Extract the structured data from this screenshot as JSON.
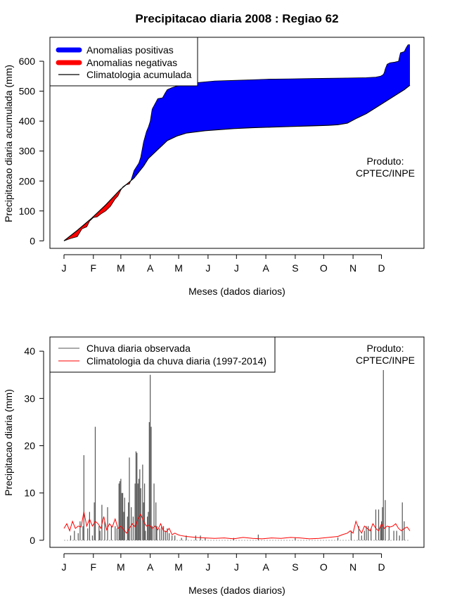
{
  "page": {
    "title": "Precipitacao diaria 2008 : Regiao 62",
    "product_line1": "Produto:",
    "product_line2": "CPTEC/INPE"
  },
  "chart_data": [
    {
      "type": "area",
      "name": "cumulative",
      "xlabel": "Meses (dados diarios)",
      "ylabel": "Precipitacao diaria acumulada (mm)",
      "x_range": [
        1,
        366
      ],
      "ylim": [
        -25,
        680
      ],
      "month_ticks": {
        "labels": [
          "J",
          "F",
          "M",
          "A",
          "M",
          "J",
          "J",
          "A",
          "S",
          "O",
          "N",
          "D"
        ],
        "days": [
          1,
          32,
          61,
          92,
          122,
          153,
          183,
          214,
          245,
          275,
          306,
          336
        ]
      },
      "yticks": [
        0,
        100,
        200,
        300,
        400,
        500,
        600
      ],
      "legend": [
        {
          "label": "Anomalias positivas",
          "color": "#0000ff",
          "style": "thick"
        },
        {
          "label": "Anomalias negativas",
          "color": "#ff0000",
          "style": "thick"
        },
        {
          "label": "Climatologia acumulada",
          "color": "#000000",
          "style": "thin"
        }
      ],
      "series": [
        {
          "name": "Precipitacao observada acumulada",
          "x": [
            1,
            8,
            15,
            20,
            25,
            28,
            32,
            36,
            40,
            45,
            50,
            55,
            58,
            61,
            63,
            66,
            70,
            72,
            75,
            80,
            82,
            85,
            88,
            90,
            92,
            94,
            100,
            105,
            108,
            110,
            115,
            118,
            122,
            127,
            130,
            140,
            153,
            160,
            180,
            200,
            215,
            240,
            260,
            280,
            300,
            320,
            330,
            335,
            338,
            339,
            340,
            342,
            345,
            350,
            354,
            356,
            360,
            362,
            364,
            366
          ],
          "values": [
            0,
            8,
            14,
            40,
            47,
            66,
            78,
            80,
            90,
            100,
            115,
            140,
            150,
            170,
            180,
            187,
            190,
            205,
            235,
            260,
            280,
            330,
            365,
            380,
            400,
            440,
            475,
            478,
            495,
            505,
            512,
            515,
            518,
            520,
            522,
            528,
            532,
            534,
            536,
            538,
            540,
            541,
            542,
            543,
            544,
            545,
            547,
            550,
            556,
            563,
            575,
            590,
            595,
            597,
            600,
            628,
            632,
            645,
            655,
            655
          ]
        },
        {
          "name": "Climatologia acumulada",
          "x": [
            1,
            15,
            30,
            45,
            60,
            75,
            85,
            90,
            95,
            100,
            105,
            110,
            120,
            130,
            150,
            180,
            200,
            220,
            240,
            260,
            280,
            290,
            300,
            310,
            320,
            330,
            340,
            350,
            360,
            366
          ],
          "values": [
            0,
            35,
            75,
            120,
            170,
            210,
            250,
            275,
            290,
            305,
            320,
            335,
            350,
            360,
            368,
            375,
            378,
            380,
            382,
            384,
            386,
            388,
            393,
            410,
            425,
            445,
            465,
            485,
            505,
            520
          ]
        }
      ]
    },
    {
      "type": "bar",
      "name": "daily",
      "xlabel": "Meses (dados diarios)",
      "ylabel": "Precipitacao diaria (mm)",
      "x_range": [
        1,
        366
      ],
      "ylim": [
        -1.5,
        43
      ],
      "month_ticks": {
        "labels": [
          "J",
          "F",
          "M",
          "A",
          "M",
          "J",
          "J",
          "A",
          "S",
          "O",
          "N",
          "D"
        ],
        "days": [
          1,
          32,
          61,
          92,
          122,
          153,
          183,
          214,
          245,
          275,
          306,
          336
        ]
      },
      "yticks": [
        0,
        10,
        20,
        30,
        40
      ],
      "legend": [
        {
          "label": "Chuva diaria observada",
          "color": "#555555"
        },
        {
          "label": "Climatologia da chuva diaria (1997-2014)",
          "color": "#ff0000"
        }
      ],
      "series": [
        {
          "name": "Chuva diaria observada",
          "days": [
            8,
            12,
            16,
            18,
            21,
            22,
            26,
            28,
            31,
            33,
            34,
            38,
            39,
            41,
            44,
            47,
            51,
            55,
            57,
            59,
            60,
            61,
            62,
            63,
            64,
            65,
            68,
            69,
            70,
            72,
            74,
            76,
            77,
            78,
            79,
            80,
            81,
            82,
            84,
            85,
            86,
            87,
            89,
            90,
            91,
            92,
            93,
            94,
            96,
            98,
            99,
            102,
            104,
            106,
            108,
            110,
            112,
            115,
            118,
            125,
            130,
            140,
            145,
            150,
            180,
            206,
            245,
            290,
            304,
            312,
            315,
            318,
            320,
            322,
            325,
            330,
            333,
            335,
            336,
            337,
            338,
            340,
            344,
            349,
            352,
            355,
            358,
            360
          ],
          "values": [
            1,
            2,
            1.5,
            4,
            3,
            18,
            2.5,
            6,
            1,
            8,
            24,
            3,
            2,
            7.5,
            4,
            7,
            3,
            3,
            2.5,
            12,
            12.5,
            13,
            10,
            10,
            6,
            9,
            5,
            8,
            17.5,
            7,
            5,
            12,
            18.8,
            18.5,
            12,
            13,
            15,
            11,
            16,
            8,
            12,
            2,
            5,
            6,
            25,
            35,
            24,
            3,
            12,
            8,
            3,
            2.5,
            3,
            3,
            2,
            2.5,
            1.5,
            1,
            1,
            0.5,
            1,
            1,
            1,
            0.5,
            0.5,
            1.2,
            0.5,
            0.6,
            2,
            3,
            1,
            2,
            3,
            3,
            2.5,
            6.5,
            6.5,
            3,
            4,
            7,
            36,
            8.5,
            3,
            2,
            2,
            1,
            8,
            4
          ]
        },
        {
          "name": "Climatologia da chuva diaria (1997-2014)",
          "days": [
            1,
            4,
            7,
            10,
            13,
            16,
            19,
            22,
            25,
            28,
            31,
            34,
            37,
            40,
            43,
            46,
            49,
            52,
            55,
            58,
            61,
            64,
            67,
            70,
            73,
            76,
            79,
            82,
            85,
            88,
            91,
            94,
            97,
            100,
            103,
            106,
            109,
            112,
            115,
            118,
            121,
            124,
            127,
            130,
            140,
            150,
            160,
            170,
            180,
            190,
            200,
            210,
            220,
            230,
            240,
            250,
            260,
            270,
            280,
            290,
            295,
            300,
            303,
            306,
            309,
            312,
            315,
            318,
            321,
            324,
            327,
            330,
            333,
            336,
            339,
            342,
            345,
            348,
            351,
            354,
            357,
            360,
            363,
            366
          ],
          "values": [
            2.5,
            3.5,
            2,
            4,
            2.5,
            3,
            2.8,
            6,
            3,
            4.5,
            3,
            4,
            3.5,
            2.5,
            5,
            2.2,
            3.5,
            2.8,
            4.5,
            2.5,
            3,
            2.2,
            1.5,
            2.5,
            3.5,
            2.8,
            4.5,
            5.5,
            4,
            3,
            3.2,
            2.5,
            3,
            2.2,
            3.5,
            2,
            1.8,
            2.5,
            1.2,
            1.5,
            1.2,
            1,
            0.9,
            0.8,
            0.6,
            0.5,
            0.4,
            0.5,
            0.3,
            0.6,
            0.4,
            0.3,
            0.5,
            0.4,
            0.6,
            0.5,
            0.3,
            0.4,
            0.6,
            0.8,
            1.2,
            1.5,
            2,
            1.5,
            4,
            2.5,
            1.5,
            3,
            2.5,
            2,
            3.5,
            2.5,
            2,
            3.5,
            2.5,
            3,
            2.8,
            3,
            3.5,
            2.5,
            2,
            2.5,
            2.8,
            2
          ]
        }
      ]
    }
  ]
}
